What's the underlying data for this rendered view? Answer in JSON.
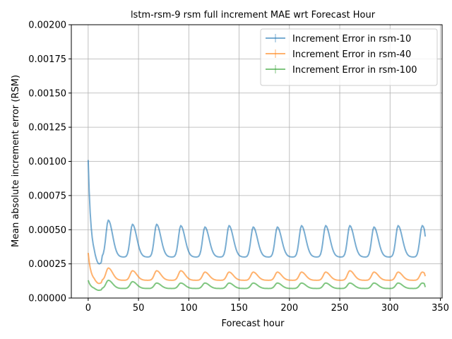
{
  "chart_data": {
    "type": "line",
    "title": "lstm-rsm-9 rsm full increment MAE wrt Forecast Hour",
    "xlabel": "Forecast hour",
    "ylabel": "Mean absolute increment error (RSM)",
    "xlim": [
      -16.75,
      351.75
    ],
    "ylim": [
      0,
      0.002
    ],
    "xticks": [
      0,
      50,
      100,
      150,
      200,
      250,
      300,
      350
    ],
    "xtick_labels": [
      "0",
      "50",
      "100",
      "150",
      "200",
      "250",
      "300",
      "350"
    ],
    "yticks": [
      0,
      0.00025,
      0.0005,
      0.00075,
      0.001,
      0.00125,
      0.0015,
      0.00175,
      0.002
    ],
    "ytick_labels": [
      "0.00000",
      "0.00025",
      "0.00050",
      "0.00075",
      "0.00100",
      "0.00125",
      "0.00150",
      "0.00175",
      "0.00200"
    ],
    "grid": true,
    "legend_position": "top-right",
    "x_max": 335,
    "cycle_hours": 24,
    "peak_hours": [
      20,
      44,
      68,
      92,
      116,
      140,
      164,
      188,
      212,
      236,
      260,
      284,
      308,
      332
    ],
    "series": [
      {
        "name": "Increment Error in rsm-10",
        "color": "#1f77b4",
        "start_value": 0.00101,
        "base": 0.0003,
        "peaks": [
          0.00057,
          0.00054,
          0.00054,
          0.00053,
          0.00052,
          0.00053,
          0.00052,
          0.00052,
          0.00053,
          0.00053,
          0.00053,
          0.00052,
          0.00053,
          0.00053
        ],
        "end_value": 0.00045
      },
      {
        "name": "Increment Error in rsm-40",
        "color": "#ff7f0e",
        "start_value": 0.00033,
        "base": 0.00013,
        "peaks": [
          0.00022,
          0.0002,
          0.0002,
          0.0002,
          0.00019,
          0.00019,
          0.00019,
          0.00019,
          0.00019,
          0.00019,
          0.0002,
          0.00019,
          0.00019,
          0.00019
        ],
        "end_value": 0.00016
      },
      {
        "name": "Increment Error in rsm-100",
        "color": "#2ca02c",
        "start_value": 0.00013,
        "base": 7e-05,
        "peaks": [
          0.00013,
          0.00012,
          0.00011,
          0.00011,
          0.00011,
          0.00011,
          0.00011,
          0.00011,
          0.00011,
          0.00011,
          0.00011,
          0.00011,
          0.00011,
          0.00011
        ],
        "end_value": 8e-05
      }
    ]
  }
}
